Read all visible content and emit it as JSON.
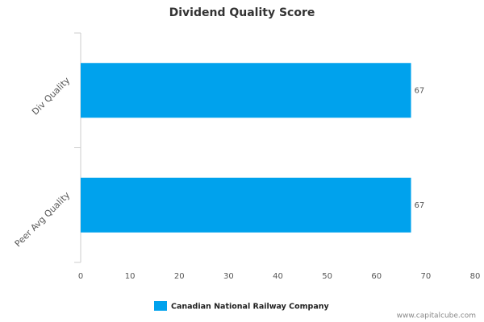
{
  "chart_data": {
    "type": "hbar",
    "title": "Dividend Quality Score",
    "categories": [
      "Div Quality",
      "Peer Avg Quality"
    ],
    "series": [
      {
        "name": "Canadian National Railway Company",
        "color": "#00a2ed",
        "values": [
          67,
          67
        ]
      }
    ],
    "xlim": [
      0,
      80
    ],
    "xticks": [
      0,
      10,
      20,
      30,
      40,
      50,
      60,
      70,
      80
    ],
    "grid": false,
    "legend": "bottom",
    "credit": "www.capitalcube.com"
  }
}
